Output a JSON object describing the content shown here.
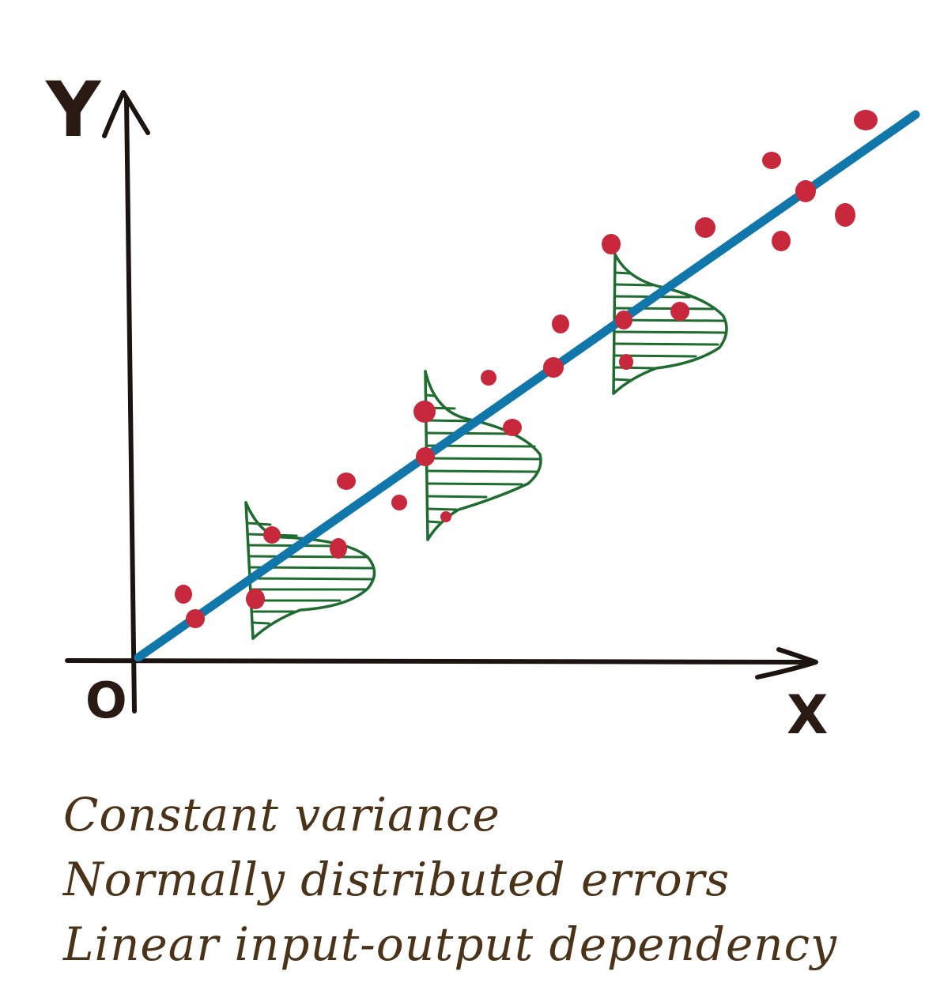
{
  "axes": {
    "y_label": "Y",
    "x_label": "X",
    "origin_label": "O"
  },
  "colors": {
    "axis": "#1c1410",
    "regression_line": "#1177aa",
    "points": "#c8283c",
    "distribution": "#1f6b30",
    "caption": "#4a3318"
  },
  "caption": {
    "line1": "Constant variance",
    "line2": "Normally distributed errors",
    "line3": "Linear input-output dependency"
  }
}
